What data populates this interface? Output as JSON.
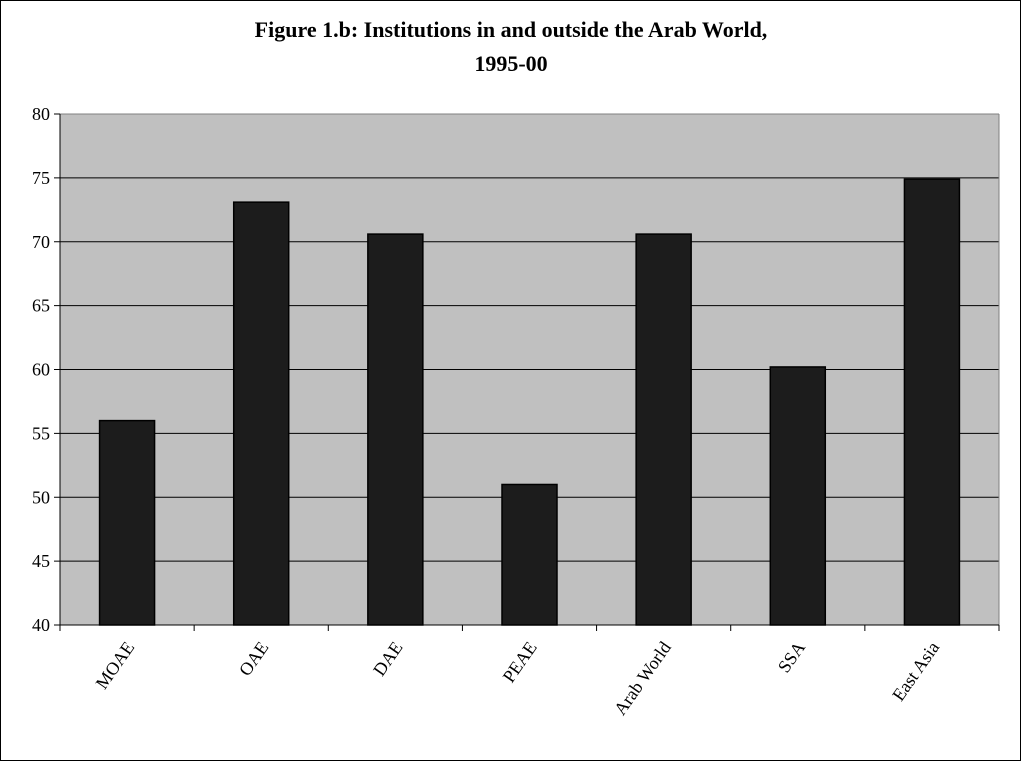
{
  "chart_data": {
    "type": "bar",
    "title_line1": "Figure 1.b: Institutions in and outside the Arab World,",
    "title_line2": "1995-00",
    "xlabel": "",
    "ylabel": "",
    "categories": [
      "MOAE",
      "OAE",
      "DAE",
      "PEAE",
      "Arab World",
      "SSA",
      "East Asia"
    ],
    "values": [
      56,
      73.1,
      70.6,
      51,
      70.6,
      60.2,
      74.9
    ],
    "ylim": [
      40,
      80
    ],
    "yticks": [
      "40",
      "45",
      "50",
      "55",
      "60",
      "65",
      "70",
      "75",
      "80"
    ],
    "grid": true,
    "legend": "none",
    "colors": {
      "plot_background": "#c0c0c0",
      "bar_fill": "#1c1c1c",
      "bar_stroke": "#000000",
      "gridline": "#000000"
    }
  }
}
